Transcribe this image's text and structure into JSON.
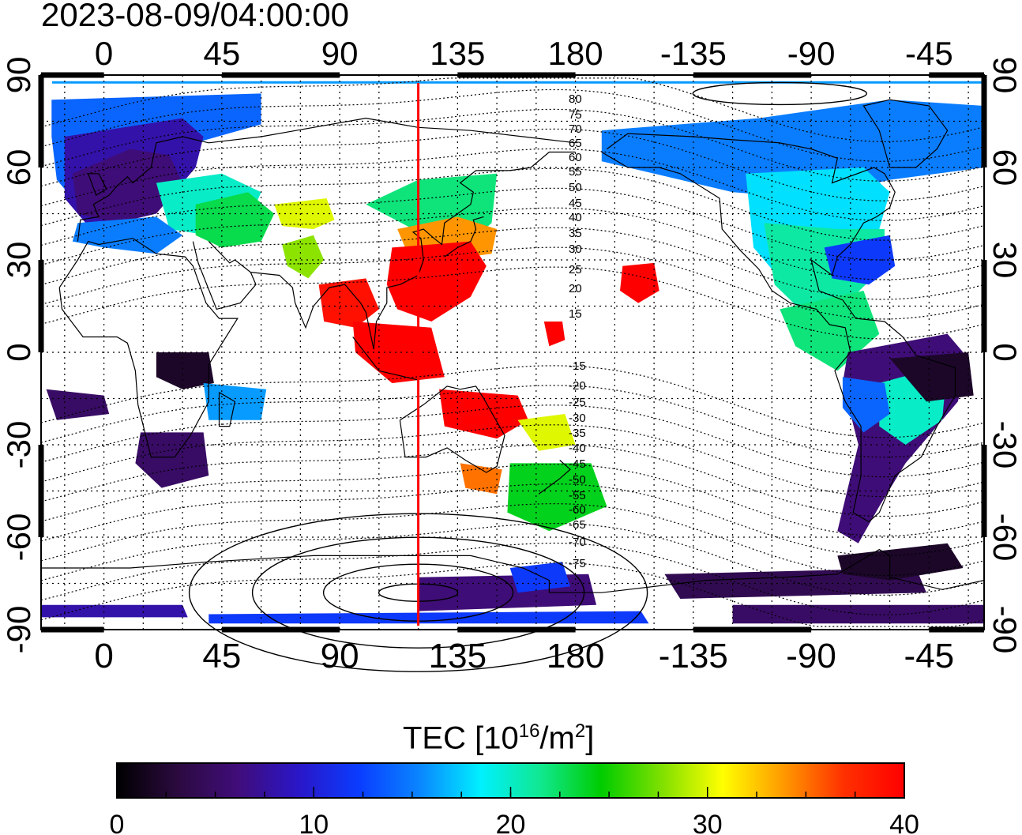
{
  "timestamp": "2023-08-09/04:00:00",
  "axes": {
    "x_ticks": [
      "0",
      "45",
      "90",
      "135",
      "180",
      "-135",
      "-90",
      "-45"
    ],
    "y_ticks_left": [
      "90",
      "60",
      "30",
      "0",
      "-30",
      "-60",
      "-90"
    ],
    "y_ticks_right": [
      "90",
      "60",
      "30",
      "0",
      "-30",
      "-60",
      "-90"
    ]
  },
  "meridian_marker": {
    "longitude": 120,
    "color": "#ff0000"
  },
  "contour_labels": {
    "north": [
      "80",
      "75",
      "70",
      "65",
      "60",
      "55",
      "50",
      "45",
      "40",
      "35",
      "30",
      "25",
      "20",
      "15"
    ],
    "south": [
      "-15",
      "-20",
      "-25",
      "-30",
      "-35",
      "-40",
      "-45",
      "-50",
      "-55",
      "-60",
      "-65",
      "-70",
      "-75"
    ]
  },
  "colorbar": {
    "title_prefix": "TEC  [10",
    "title_sup1": "16",
    "title_mid": "/m",
    "title_sup2": "2",
    "title_suffix": "]",
    "tick_labels": [
      "0",
      "10",
      "20",
      "30",
      "40"
    ],
    "range": [
      0,
      40
    ],
    "stops": [
      "#000000",
      "#2b0a3f",
      "#400d7a",
      "#2a16c8",
      "#0a3dff",
      "#0a86ff",
      "#00f0ff",
      "#10e890",
      "#00cc00",
      "#80e000",
      "#ffff00",
      "#ff9a00",
      "#ff3000",
      "#ff0000"
    ]
  },
  "colors": {
    "land_outline": "#000000",
    "grid": "#000000",
    "contour": "#000000"
  }
}
